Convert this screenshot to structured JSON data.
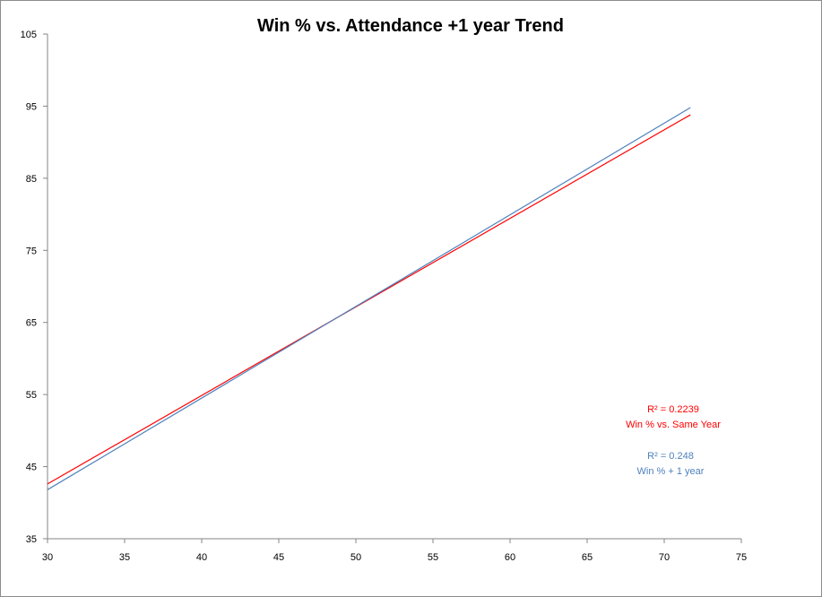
{
  "chart_data": {
    "type": "line",
    "title": "Win % vs. Attendance +1 year Trend",
    "xlabel": "",
    "ylabel": "",
    "xlim": [
      30,
      75
    ],
    "ylim": [
      35,
      105
    ],
    "x_ticks": [
      "30",
      "35",
      "40",
      "45",
      "50",
      "55",
      "60",
      "65",
      "70",
      "75"
    ],
    "y_ticks": [
      "35",
      "45",
      "55",
      "65",
      "75",
      "85",
      "95",
      "105"
    ],
    "grid": false,
    "series": [
      {
        "color": "#ff0000",
        "x": [
          30,
          71.7
        ],
        "y": [
          42.6,
          93.8
        ]
      },
      {
        "color": "#4f81bd",
        "x": [
          30,
          71.7
        ],
        "y": [
          41.8,
          94.8
        ]
      }
    ],
    "annotations": [
      {
        "r2_label": "R² = 0.2239",
        "name": "Win % vs. Same Year",
        "color": "#ff0000"
      },
      {
        "r2_label": "R² = 0.248",
        "name": "Win % + 1 year",
        "color": "#4f81bd"
      }
    ]
  }
}
